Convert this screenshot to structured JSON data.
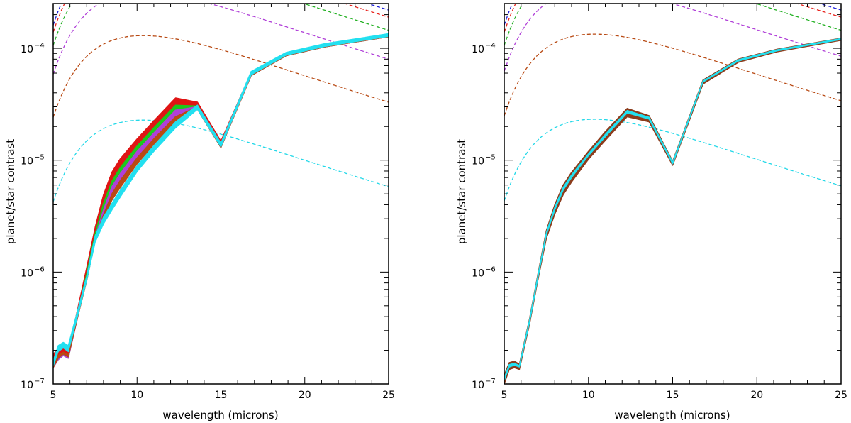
{
  "chart_data": [
    {
      "type": "line",
      "panel": "left",
      "xlabel": "wavelength (microns)",
      "ylabel": "planet/star contrast",
      "xlim": [
        5,
        25
      ],
      "ylim_log10": [
        -7,
        -3.6
      ],
      "xticks": [
        5,
        10,
        15,
        20,
        25
      ],
      "yticks": [
        {
          "exp": -7,
          "label": "10",
          "sup": "−7"
        },
        {
          "exp": -6,
          "label": "10",
          "sup": "−6"
        },
        {
          "exp": -5,
          "label": "10",
          "sup": "−5"
        },
        {
          "exp": -4,
          "label": "10",
          "sup": "−4"
        }
      ],
      "blackbody_dashed": [
        {
          "color": "#1c1cd9",
          "at25": 0.00022
        },
        {
          "color": "#e8221c",
          "at25": 0.00019
        },
        {
          "color": "#22b022",
          "at25": 0.000145
        },
        {
          "color": "#b040d8",
          "at25": 8e-05
        },
        {
          "color": "#b84a14",
          "at25": 3.3e-05
        },
        {
          "color": "#22d8e8",
          "at25": 5.8e-06
        }
      ],
      "x": [
        5,
        5.3,
        5.6,
        5.9,
        6.5,
        7.0,
        7.5,
        8.0,
        8.5,
        9.0,
        10.0,
        11.0,
        12.3,
        13.6,
        15.0,
        16.8,
        18.9,
        21.2,
        25.0
      ],
      "series": [
        {
          "name": "band-red",
          "color": "#e01414",
          "lower": [
            1.55e-07,
            1.75e-07,
            1.85e-07,
            1.75e-07,
            4.5e-07,
            9.5e-07,
            2.1e-06,
            4e-06,
            6.5e-06,
            8.6e-06,
            1.34e-05,
            1.95e-05,
            3.1e-05,
            2.9e-05,
            1.3e-05,
            5.7e-05,
            8.6e-05,
            0.000103,
            0.000127
          ],
          "upper": [
            1.85e-07,
            2.05e-07,
            2.1e-07,
            1.95e-07,
            5e-07,
            1.1e-06,
            2.5e-06,
            4.9e-06,
            7.8e-06,
            1.03e-05,
            1.55e-05,
            2.25e-05,
            3.6e-05,
            3.3e-05,
            1.48e-05,
            6.1e-05,
            9e-05,
            0.000107,
            0.000131
          ]
        },
        {
          "name": "band-green",
          "color": "#1cc81c",
          "lower": [
            1.45e-07,
            1.65e-07,
            1.8e-07,
            1.7e-07,
            4.3e-07,
            9e-07,
            2e-06,
            3.6e-06,
            5.8e-06,
            7.6e-06,
            1.2e-05,
            1.75e-05,
            2.8e-05,
            2.85e-05,
            1.3e-05,
            5.7e-05,
            8.6e-05,
            0.000103,
            0.000127
          ],
          "upper": [
            1.6e-07,
            1.8e-07,
            1.9e-07,
            1.8e-07,
            4.6e-07,
            9.8e-07,
            2.2e-06,
            4.1e-06,
            6.5e-06,
            8.6e-06,
            1.34e-05,
            1.95e-05,
            3.1e-05,
            3.05e-05,
            1.4e-05,
            5.9e-05,
            8.8e-05,
            0.000105,
            0.000129
          ]
        },
        {
          "name": "band-purple",
          "color": "#b040d8",
          "lower": [
            1.4e-07,
            1.65e-07,
            1.8e-07,
            1.7e-07,
            4.2e-07,
            8.6e-07,
            1.9e-06,
            3.2e-06,
            5e-06,
            6.6e-06,
            1.05e-05,
            1.55e-05,
            2.45e-05,
            2.85e-05,
            1.3e-05,
            5.7e-05,
            8.6e-05,
            0.000103,
            0.000127
          ],
          "upper": [
            1.5e-07,
            1.75e-07,
            1.88e-07,
            1.78e-07,
            4.4e-07,
            9.2e-07,
            2.05e-06,
            3.6e-06,
            5.8e-06,
            7.6e-06,
            1.2e-05,
            1.75e-05,
            2.8e-05,
            3e-05,
            1.38e-05,
            5.9e-05,
            8.8e-05,
            0.000105,
            0.000129
          ]
        },
        {
          "name": "band-brown",
          "color": "#b84a14",
          "lower": [
            1.4e-07,
            1.7e-07,
            1.85e-07,
            1.75e-07,
            4.2e-07,
            8.4e-07,
            1.9e-06,
            3e-06,
            4.4e-06,
            5.7e-06,
            9.3e-06,
            1.38e-05,
            2.2e-05,
            2.85e-05,
            1.3e-05,
            5.7e-05,
            8.6e-05,
            0.000103,
            0.000127
          ],
          "upper": [
            1.48e-07,
            1.8e-07,
            1.92e-07,
            1.82e-07,
            4.4e-07,
            8.8e-07,
            2e-06,
            3.25e-06,
            5e-06,
            6.6e-06,
            1.05e-05,
            1.55e-05,
            2.45e-05,
            3e-05,
            1.38e-05,
            5.9e-05,
            8.8e-05,
            0.000105,
            0.000129
          ]
        },
        {
          "name": "band-cyan",
          "color": "#22e0f0",
          "lower": [
            1.45e-07,
            1.95e-07,
            2.1e-07,
            1.95e-07,
            4.3e-07,
            8.5e-07,
            1.85e-06,
            2.7e-06,
            3.6e-06,
            4.7e-06,
            7.9e-06,
            1.2e-05,
            1.95e-05,
            2.85e-05,
            1.32e-05,
            5.8e-05,
            8.7e-05,
            0.000104,
            0.000128
          ],
          "upper": [
            1.6e-07,
            2.2e-07,
            2.35e-07,
            2.2e-07,
            4.8e-07,
            9.2e-07,
            2.1e-06,
            3.1e-06,
            4.1e-06,
            5.4e-06,
            8.9e-06,
            1.35e-05,
            2.2e-05,
            3.1e-05,
            1.42e-05,
            6.2e-05,
            9.2e-05,
            0.00011,
            0.000135
          ]
        }
      ]
    },
    {
      "type": "line",
      "panel": "right",
      "xlabel": "wavelength (microns)",
      "ylabel": "planet/star contrast",
      "xlim": [
        5,
        25
      ],
      "ylim_log10": [
        -7,
        -3.6
      ],
      "xticks": [
        5,
        10,
        15,
        20,
        25
      ],
      "yticks": [
        {
          "exp": -7,
          "label": "10",
          "sup": "−7"
        },
        {
          "exp": -6,
          "label": "10",
          "sup": "−6"
        },
        {
          "exp": -5,
          "label": "10",
          "sup": "−5"
        },
        {
          "exp": -4,
          "label": "10",
          "sup": "−4"
        }
      ],
      "blackbody_dashed": [
        {
          "color": "#1c1cd9",
          "at25": 0.00022
        },
        {
          "color": "#e8221c",
          "at25": 0.00019
        },
        {
          "color": "#22b022",
          "at25": 0.000145
        },
        {
          "color": "#b040d8",
          "at25": 8.5e-05
        },
        {
          "color": "#b84a14",
          "at25": 3.4e-05
        },
        {
          "color": "#22d8e8",
          "at25": 5.9e-06
        }
      ],
      "x": [
        5,
        5.3,
        5.6,
        5.9,
        6.5,
        7.0,
        7.5,
        8.0,
        8.5,
        9.0,
        10.0,
        11.0,
        12.3,
        13.6,
        15.0,
        16.8,
        18.9,
        21.2,
        25.0
      ],
      "series": [
        {
          "name": "band-brown",
          "color": "#8c3c1c",
          "lower": [
            1e-07,
            1.35e-07,
            1.4e-07,
            1.35e-07,
            3.4e-07,
            8.5e-07,
            2e-06,
            3.3e-06,
            4.9e-06,
            6.4e-06,
            1.02e-05,
            1.5e-05,
            2.45e-05,
            2.2e-05,
            9e-06,
            4.8e-05,
            7.5e-05,
            9.3e-05,
            0.000118
          ],
          "upper": [
            1.2e-07,
            1.55e-07,
            1.6e-07,
            1.5e-07,
            3.8e-07,
            9.6e-07,
            2.35e-06,
            4e-06,
            6e-06,
            7.8e-06,
            1.2e-05,
            1.8e-05,
            2.9e-05,
            2.5e-05,
            9.8e-06,
            5.2e-05,
            8e-05,
            9.8e-05,
            0.000123
          ]
        },
        {
          "name": "band-cyan",
          "color": "#22e0f0",
          "lower": [
            1.08e-07,
            1.42e-07,
            1.47e-07,
            1.42e-07,
            3.55e-07,
            8.9e-07,
            2.15e-06,
            3.6e-06,
            5.4e-06,
            7e-06,
            1.1e-05,
            1.62e-05,
            2.65e-05,
            2.33e-05,
            9.3e-06,
            5e-05,
            7.7e-05,
            9.5e-05,
            0.00012
          ],
          "upper": [
            1.13e-07,
            1.49e-07,
            1.53e-07,
            1.46e-07,
            3.7e-07,
            9.3e-07,
            2.25e-06,
            3.8e-06,
            5.7e-06,
            7.4e-06,
            1.14e-05,
            1.7e-05,
            2.78e-05,
            2.42e-05,
            9.6e-06,
            5.1e-05,
            7.9e-05,
            9.7e-05,
            0.000122
          ]
        }
      ]
    }
  ]
}
